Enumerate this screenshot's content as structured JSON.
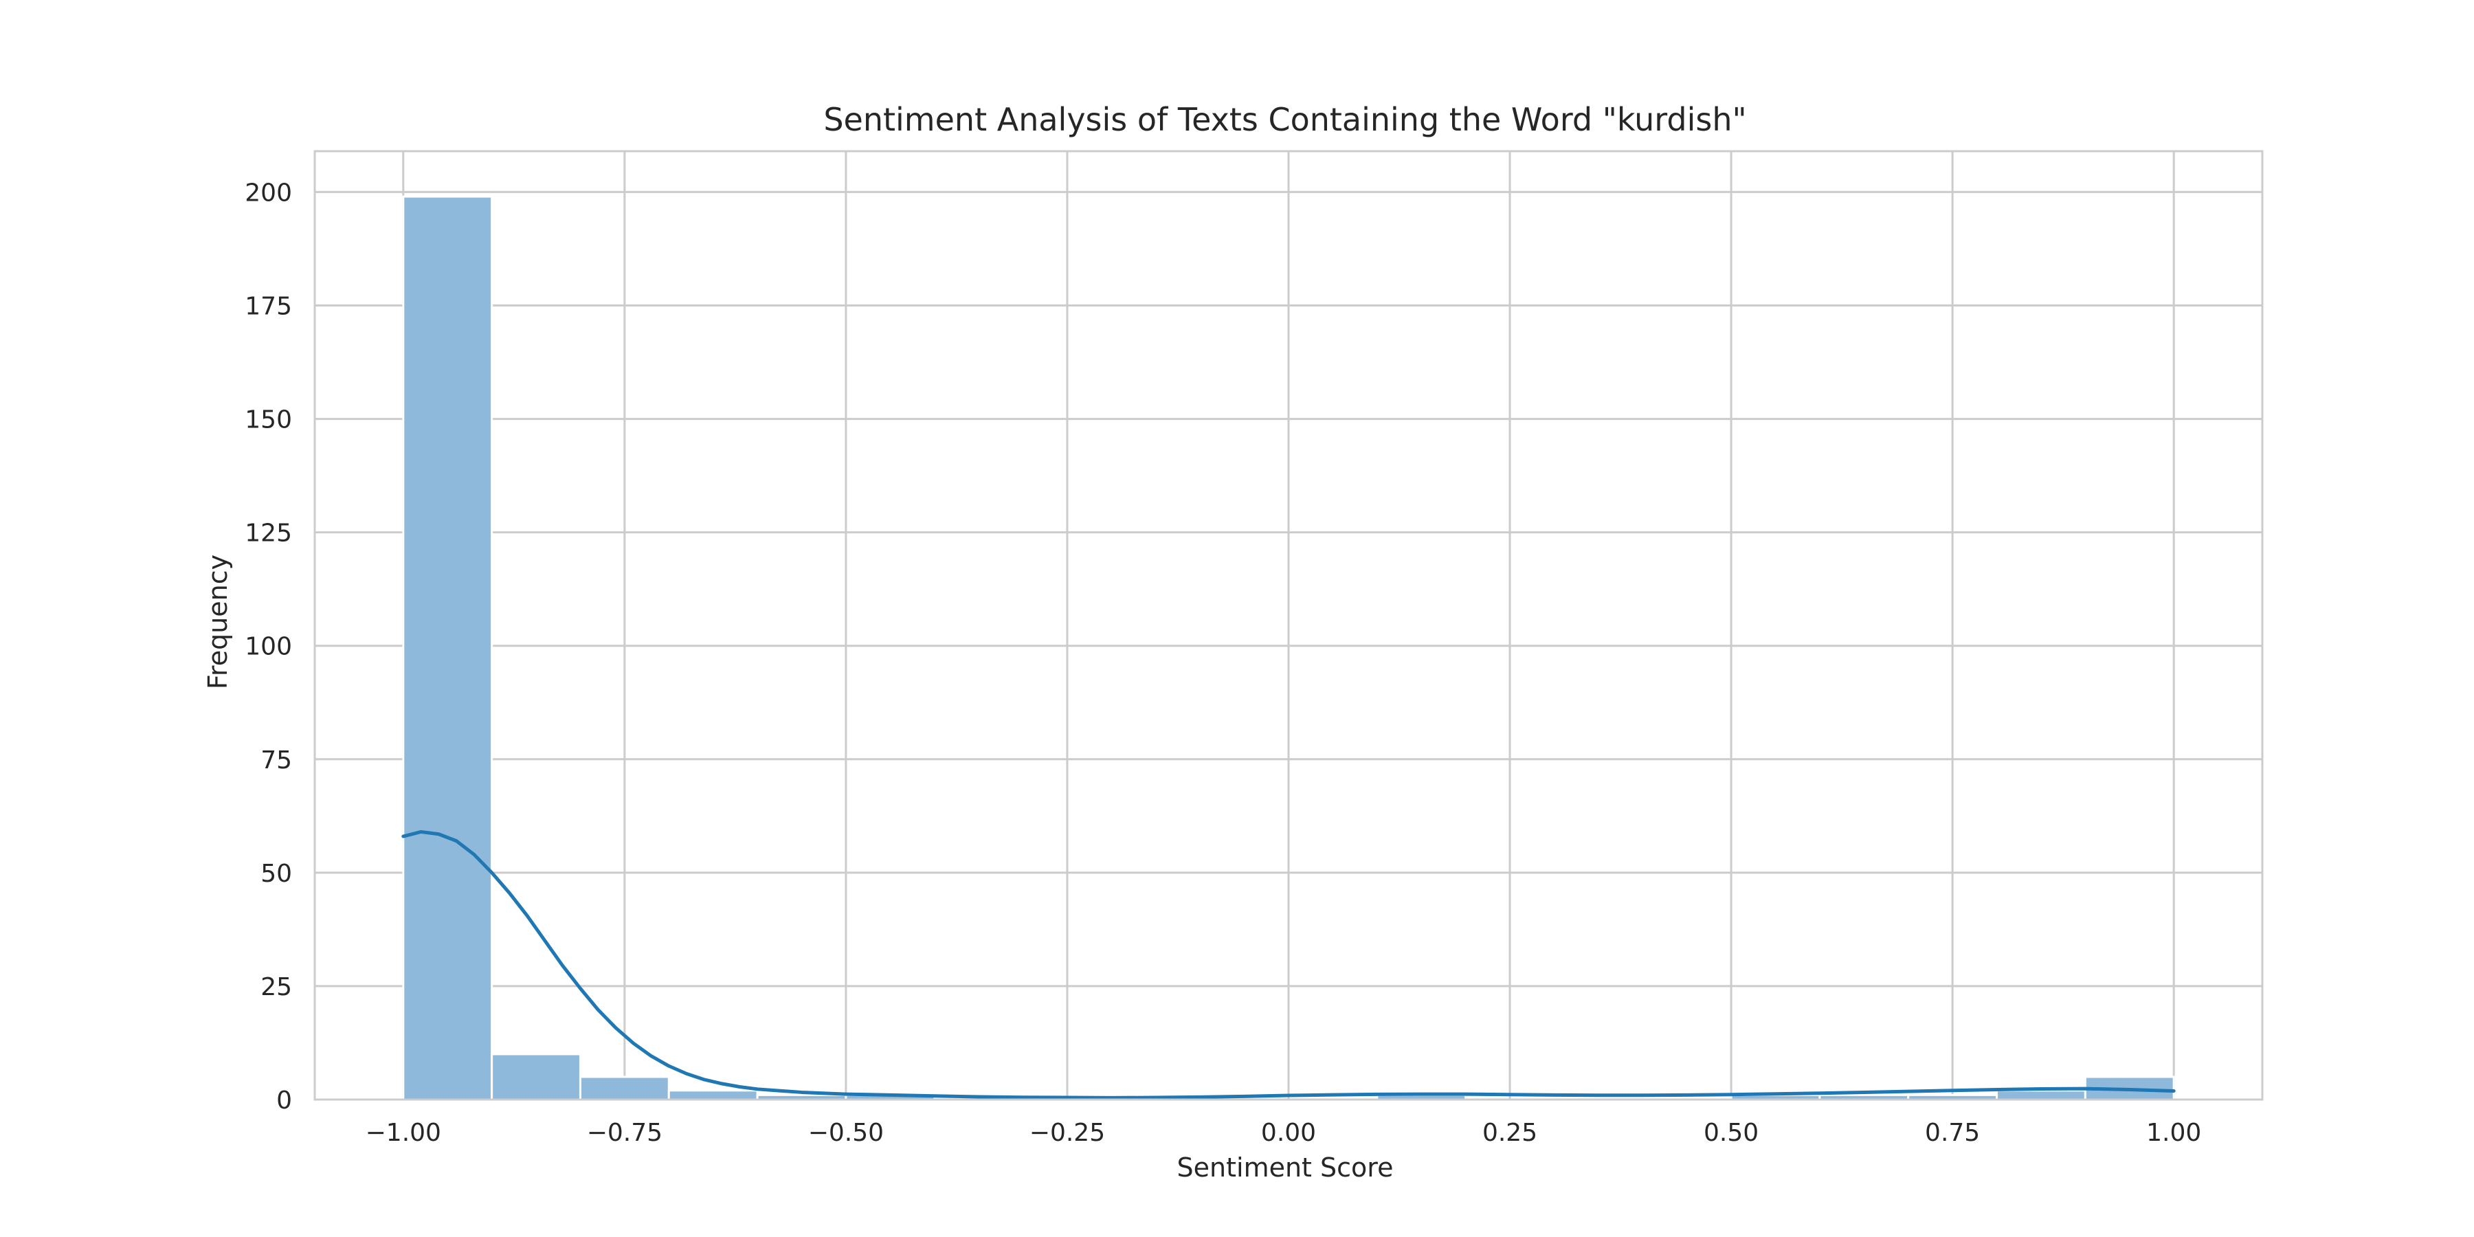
{
  "chart_data": {
    "type": "histogram",
    "title": "Sentiment Analysis of Texts Containing the Word \"kurdish\"",
    "xlabel": "Sentiment Score",
    "ylabel": "Frequency",
    "xlim": [
      -1.1,
      1.1
    ],
    "ylim": [
      0,
      209
    ],
    "xticks": [
      -1.0,
      -0.75,
      -0.5,
      -0.25,
      0.0,
      0.25,
      0.5,
      0.75,
      1.0
    ],
    "xtick_labels": [
      "−1.00",
      "−0.75",
      "−0.50",
      "−0.25",
      "0.00",
      "0.25",
      "0.50",
      "0.75",
      "1.00"
    ],
    "yticks": [
      0,
      25,
      50,
      75,
      100,
      125,
      150,
      175,
      200
    ],
    "ytick_labels": [
      "0",
      "25",
      "50",
      "75",
      "100",
      "125",
      "150",
      "175",
      "200"
    ],
    "grid": true,
    "bins": {
      "edges": [
        -1.0,
        -0.9,
        -0.8,
        -0.7,
        -0.6,
        -0.5,
        -0.4,
        -0.3,
        -0.2,
        -0.1,
        0.0,
        0.1,
        0.2,
        0.3,
        0.4,
        0.5,
        0.6,
        0.7,
        0.8,
        0.9,
        1.0
      ],
      "counts": [
        199,
        10,
        5,
        2,
        1,
        1,
        0,
        0,
        0,
        0,
        0,
        1,
        0,
        0,
        0,
        1,
        1,
        1,
        2,
        5
      ]
    },
    "kde": {
      "x": [
        -1.0,
        -0.98,
        -0.96,
        -0.94,
        -0.92,
        -0.9,
        -0.88,
        -0.86,
        -0.84,
        -0.82,
        -0.8,
        -0.78,
        -0.76,
        -0.74,
        -0.72,
        -0.7,
        -0.68,
        -0.66,
        -0.64,
        -0.62,
        -0.6,
        -0.55,
        -0.5,
        -0.45,
        -0.4,
        -0.35,
        -0.3,
        -0.25,
        -0.2,
        -0.15,
        -0.1,
        -0.05,
        0.0,
        0.05,
        0.1,
        0.15,
        0.2,
        0.25,
        0.3,
        0.35,
        0.4,
        0.45,
        0.5,
        0.55,
        0.6,
        0.65,
        0.7,
        0.75,
        0.8,
        0.85,
        0.9,
        0.95,
        1.0
      ],
      "y": [
        58,
        59,
        58.5,
        57,
        54,
        50,
        45.5,
        40.5,
        35,
        29.5,
        24.5,
        19.8,
        15.8,
        12.4,
        9.6,
        7.4,
        5.7,
        4.4,
        3.5,
        2.8,
        2.3,
        1.6,
        1.2,
        1.0,
        0.8,
        0.6,
        0.5,
        0.45,
        0.4,
        0.45,
        0.55,
        0.7,
        0.9,
        1.05,
        1.15,
        1.2,
        1.2,
        1.1,
        1.0,
        0.95,
        0.95,
        1.0,
        1.1,
        1.25,
        1.4,
        1.6,
        1.8,
        2.0,
        2.2,
        2.35,
        2.4,
        2.2,
        1.9
      ]
    },
    "colors": {
      "bar_fill": "#8fb9da",
      "bar_edge": "#ffffff",
      "kde_line": "#1f77b4",
      "grid": "#cccccc",
      "axes_edge": "#cccccc",
      "text": "#262626"
    }
  }
}
